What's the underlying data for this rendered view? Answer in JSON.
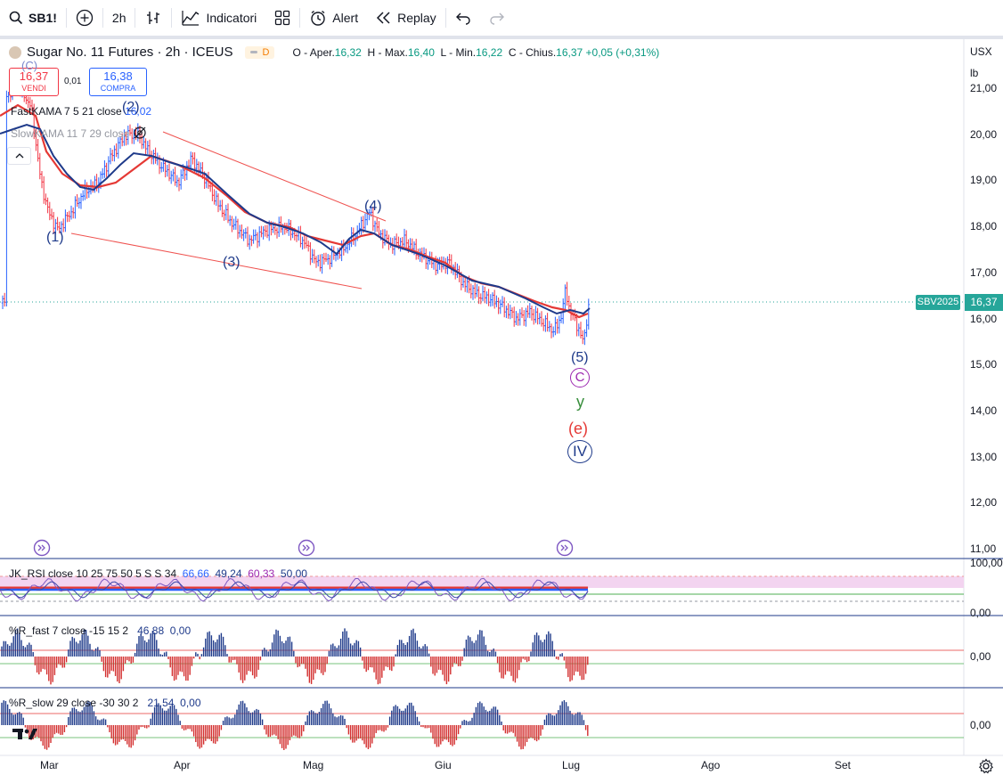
{
  "toolbar": {
    "symbol": "SB1!",
    "interval": "2h",
    "indicators_label": "Indicatori",
    "alert_label": "Alert",
    "replay_label": "Replay"
  },
  "legend": {
    "title": "Sugar No. 11 Futures · 2h · ICEUS",
    "badge": "D",
    "open_label": "O - Aper.",
    "open": "16,32",
    "high_label": "H - Max.",
    "high": "16,40",
    "low_label": "L - Min.",
    "low": "16,22",
    "close_label": "C - Chius.",
    "close": "16,37",
    "change": "+0,05 (+0,31%)"
  },
  "trade": {
    "sell_price": "16,37",
    "sell_label": "VENDI",
    "spread": "0,01",
    "buy_price": "16,38",
    "buy_label": "COMPRA"
  },
  "indicators": {
    "fast_kama": "FastKAMA 7 5 21 close",
    "fast_kama_value": "16,02",
    "slow_kama": "SlowKAMA 11 7 29 close",
    "rsi_label": "JK_RSI close 10 25 75 50 5 S S 34",
    "rsi_values": [
      "66,66",
      "49,24",
      "60,33",
      "50,00"
    ],
    "wr_fast_label": "%R_fast 7 close -15 15 2",
    "wr_fast_values": [
      "46,88",
      "0,00"
    ],
    "wr_slow_label": "%R_slow 29 close -30 30 2",
    "wr_slow_values": [
      "21,54",
      "0,00"
    ]
  },
  "price_axis": {
    "currency": "USX",
    "unit": "lb",
    "ticks": [
      "21,00",
      "20,00",
      "19,00",
      "18,00",
      "17,00",
      "16,00",
      "15,00",
      "14,00",
      "13,00",
      "12,00",
      "11,00"
    ],
    "rsi_ticks": [
      "100,00",
      "0,00"
    ],
    "wr_fast_tick": "0,00",
    "wr_slow_tick": "0,00",
    "last_symbol": "SBV2025",
    "last_price": "16,37"
  },
  "time_axis": [
    "Mar",
    "Apr",
    "Mag",
    "Giu",
    "Lug",
    "Ago",
    "Set"
  ],
  "waves": {
    "w1": "(1)",
    "w2": "(2)",
    "w3": "(3)",
    "w4": "(4)",
    "w5": "(5)",
    "top_c": "(C)",
    "C": "C",
    "y": "y",
    "e": "(e)",
    "IV": "IV"
  },
  "colors": {
    "up": "#2962ff",
    "down": "#f23645",
    "slow_kama": "#1e3a8a",
    "fast_kama": "#e53935",
    "rsi_band": "#f3d4f0",
    "teal": "#26a69a"
  }
}
